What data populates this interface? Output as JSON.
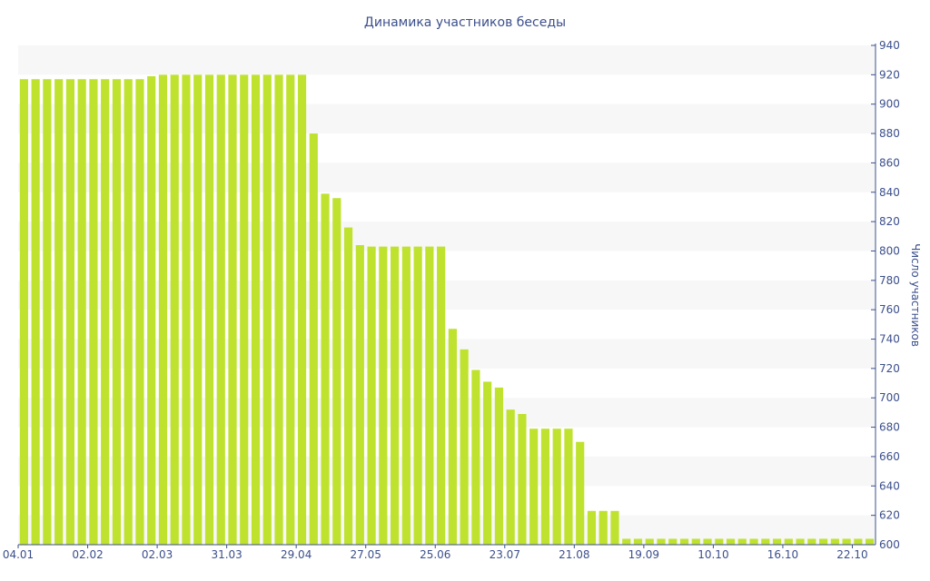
{
  "chart_data": {
    "type": "bar",
    "title": "Динамика участников беседы",
    "ylabel": "Число участников",
    "xlabel": "",
    "ylim": [
      600,
      940
    ],
    "yticks": [
      600,
      620,
      640,
      660,
      680,
      700,
      720,
      740,
      760,
      780,
      800,
      820,
      840,
      860,
      880,
      900,
      920,
      940
    ],
    "y_axis_position": "right",
    "grid": "alternating horizontal bands",
    "bar_color": "#bfe22f",
    "band_color": "#f7f7f7",
    "text_color": "#3b4f8c",
    "xtick_labels": [
      {
        "label": "04.01",
        "index": 0
      },
      {
        "label": "02.02",
        "index": 6
      },
      {
        "label": "02.03",
        "index": 12
      },
      {
        "label": "31.03",
        "index": 18
      },
      {
        "label": "29.04",
        "index": 24
      },
      {
        "label": "27.05",
        "index": 30
      },
      {
        "label": "25.06",
        "index": 36
      },
      {
        "label": "23.07",
        "index": 42
      },
      {
        "label": "21.08",
        "index": 48
      },
      {
        "label": "19.09",
        "index": 54
      },
      {
        "label": "10.10",
        "index": 60
      },
      {
        "label": "16.10",
        "index": 66
      },
      {
        "label": "22.10",
        "index": 72
      }
    ],
    "values": [
      917,
      917,
      917,
      917,
      917,
      917,
      917,
      917,
      917,
      917,
      917,
      919,
      920,
      920,
      920,
      920,
      920,
      920,
      920,
      920,
      920,
      920,
      920,
      920,
      920,
      880,
      839,
      836,
      816,
      804,
      803,
      803,
      803,
      803,
      803,
      803,
      803,
      747,
      733,
      719,
      711,
      707,
      692,
      689,
      679,
      679,
      679,
      679,
      670,
      623,
      623,
      623,
      604,
      604,
      604,
      604,
      604,
      604,
      604,
      604,
      604,
      604,
      604,
      604,
      604,
      604,
      604,
      604,
      604,
      604,
      604,
      604,
      604,
      604
    ]
  }
}
